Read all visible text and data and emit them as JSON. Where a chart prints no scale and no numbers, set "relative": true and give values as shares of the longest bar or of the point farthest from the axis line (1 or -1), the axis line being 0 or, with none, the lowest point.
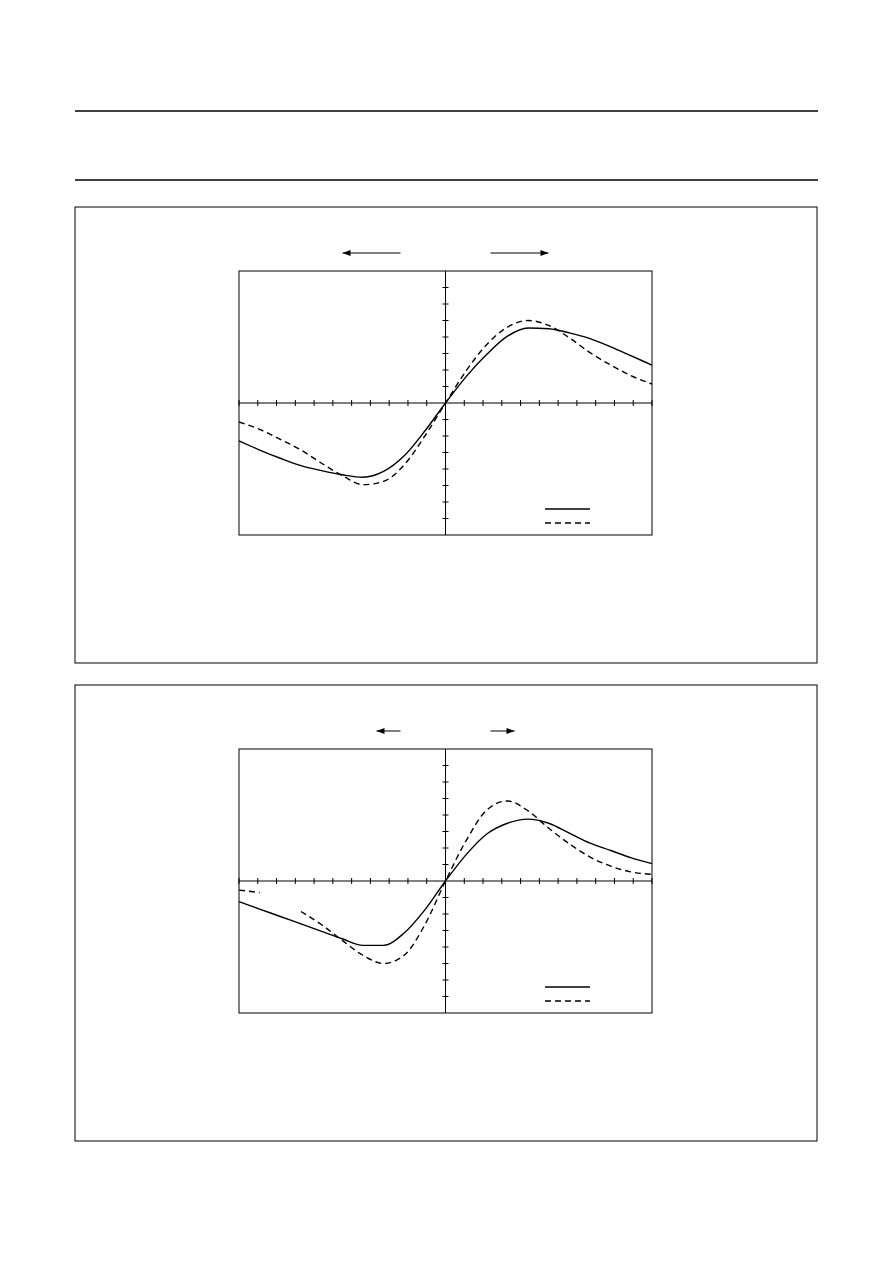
{
  "chart_data": [
    {
      "type": "line",
      "relative": true,
      "categories": [
        null,
        null,
        null,
        null,
        null,
        null,
        null,
        null,
        null,
        null,
        null,
        null,
        null,
        null,
        null,
        null,
        null,
        null,
        null,
        null,
        null
      ],
      "series": [
        {
          "color": "#000000",
          "line_style": "solid",
          "values": [
            -0.46,
            -0.57,
            -0.67,
            -0.76,
            -0.82,
            -0.87,
            -0.9,
            -0.83,
            -0.64,
            -0.34,
            0,
            0.32,
            0.59,
            0.81,
            0.91,
            0.9,
            0.85,
            0.78,
            0.68,
            0.57,
            0.46
          ]
        },
        {
          "color": "#000000",
          "line_style": "dashed",
          "values": [
            -0.23,
            -0.32,
            -0.44,
            -0.57,
            -0.73,
            -0.88,
            -0.99,
            -0.95,
            -0.75,
            -0.4,
            0,
            0.39,
            0.71,
            0.92,
            1.0,
            0.94,
            0.79,
            0.61,
            0.46,
            0.33,
            0.23
          ]
        }
      ]
    },
    {
      "type": "line",
      "relative": true,
      "categories": [
        null,
        null,
        null,
        null,
        null,
        null,
        null,
        null,
        null,
        null,
        null,
        null,
        null,
        null,
        null,
        null,
        null,
        null,
        null,
        null,
        null
      ],
      "series": [
        {
          "color": "#000000",
          "line_style": "solid",
          "values": [
            -0.25,
            -0.34,
            -0.43,
            -0.52,
            -0.61,
            -0.7,
            -0.78,
            -0.78,
            -0.63,
            -0.35,
            0,
            0.32,
            0.57,
            0.7,
            0.75,
            0.7,
            0.58,
            0.46,
            0.37,
            0.28,
            0.21
          ]
        },
        {
          "color": "#000000",
          "line_style": "dashed",
          "values": [
            -0.11,
            -0.14,
            null,
            -0.37,
            -0.53,
            -0.72,
            -0.9,
            -1.0,
            -0.9,
            -0.53,
            0,
            0.49,
            0.86,
            0.97,
            0.85,
            0.64,
            0.45,
            0.29,
            0.18,
            0.11,
            0.08
          ]
        }
      ]
    }
  ]
}
